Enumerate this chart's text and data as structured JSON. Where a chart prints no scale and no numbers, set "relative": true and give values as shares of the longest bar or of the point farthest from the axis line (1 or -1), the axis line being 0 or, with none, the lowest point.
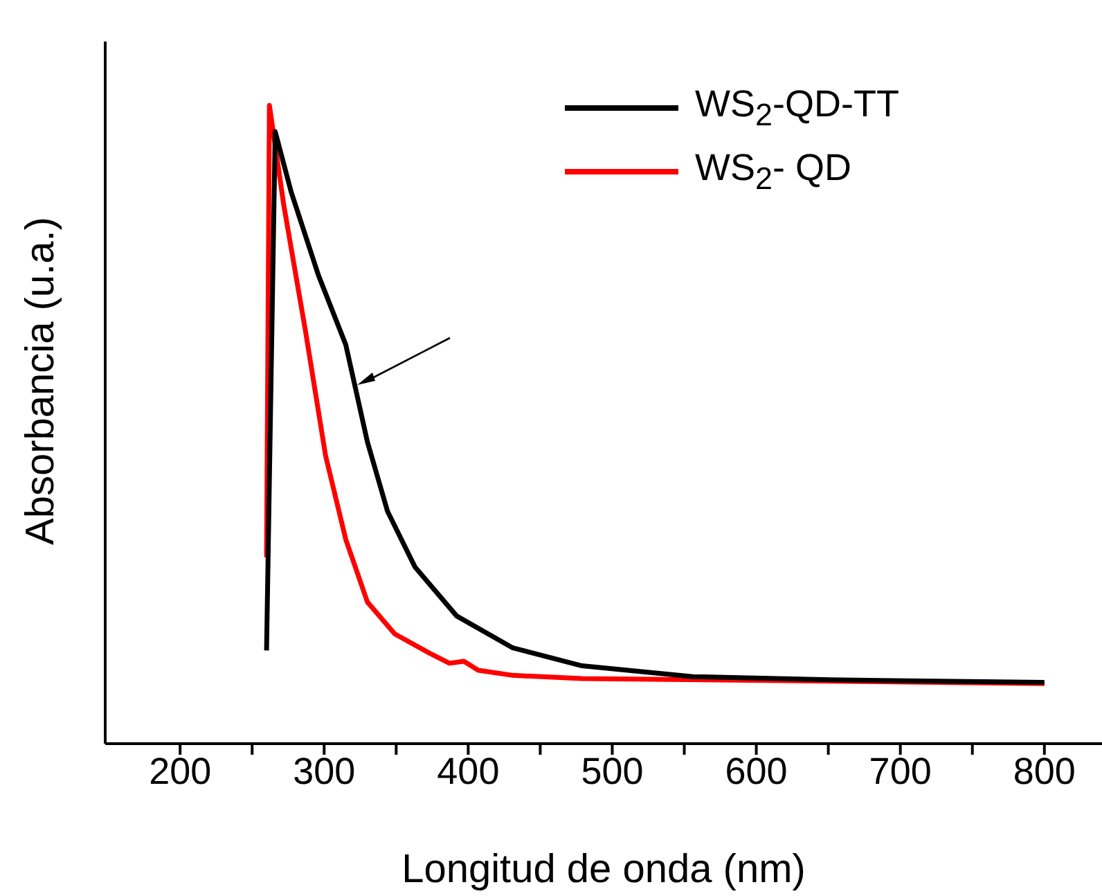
{
  "chart_data": {
    "type": "line",
    "relative": true,
    "xlabel": "Longitud de onda (nm)",
    "ylabel": "Absorbancia (u.a.)",
    "xlim": [
      148,
      840
    ],
    "xticks": [
      200,
      {
        "value": 250,
        "label": null
      },
      300,
      {
        "value": 350,
        "label": null
      },
      400,
      {
        "value": 450,
        "label": null
      },
      500,
      {
        "value": 550,
        "label": null
      },
      600,
      {
        "value": 650,
        "label": null
      },
      700,
      {
        "value": 750,
        "label": null
      },
      800
    ],
    "legend": "top right",
    "marker": "none",
    "line_style": "solid",
    "series": [
      {
        "name": "WS$_{2}$-QD-TT",
        "color": "#000000",
        "x": [
          260,
          266,
          277,
          296,
          315,
          330,
          344,
          363,
          392,
          431,
          479,
          556,
          652,
          800
        ],
        "values": [
          0.146,
          0.959,
          0.865,
          0.734,
          0.625,
          0.473,
          0.364,
          0.277,
          0.2,
          0.15,
          0.122,
          0.105,
          0.1,
          0.096
        ]
      },
      {
        "name": "WS$_{2}$- QD",
        "color": "#ff0000",
        "x": [
          260,
          262,
          272,
          287,
          301,
          315,
          330,
          349,
          373,
          387,
          397,
          407,
          431,
          479,
          652,
          800
        ],
        "values": [
          0.292,
          1.0,
          0.843,
          0.647,
          0.451,
          0.32,
          0.222,
          0.172,
          0.142,
          0.126,
          0.129,
          0.115,
          0.107,
          0.102,
          0.098,
          0.094
        ]
      }
    ]
  }
}
